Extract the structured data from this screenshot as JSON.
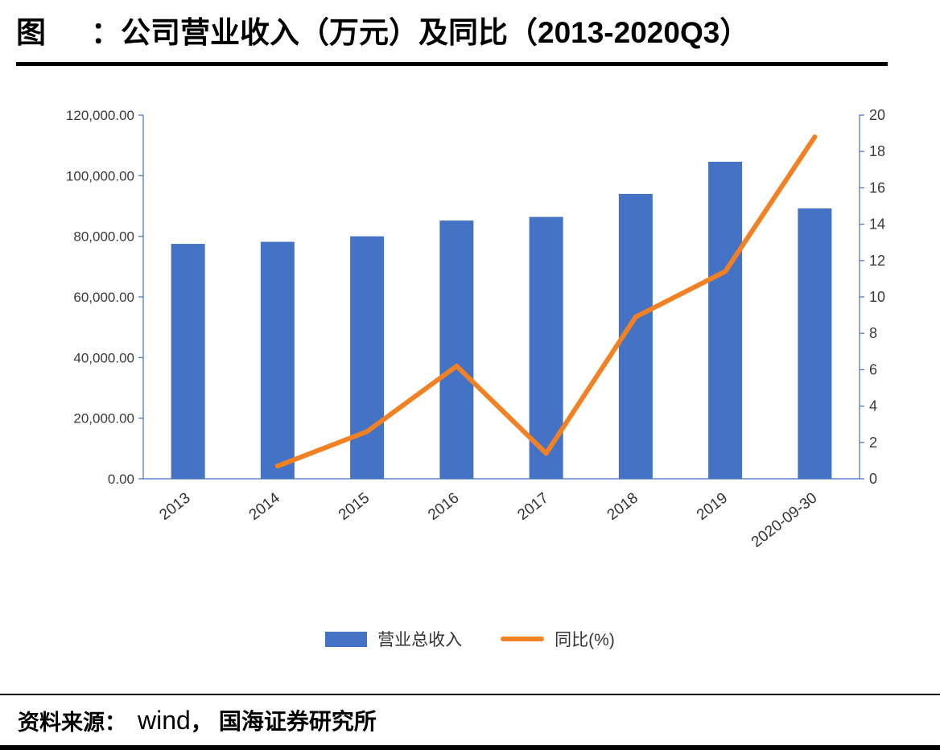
{
  "header": {
    "figure_label": "图",
    "separator": "：",
    "title": "公司营业收入（万元）及同比（2013-2020Q3）"
  },
  "chart_data": {
    "type": "bar+line",
    "title": "公司营业收入（万元）及同比（2013-2020Q3）",
    "categories": [
      "2013",
      "2014",
      "2015",
      "2016",
      "2017",
      "2018",
      "2019",
      "2020-09-30"
    ],
    "series": [
      {
        "name": "营业总收入",
        "type": "bar",
        "axis": "left",
        "color": "#4472C4",
        "values": [
          77500,
          78200,
          80000,
          85200,
          86400,
          94000,
          104600,
          89200
        ]
      },
      {
        "name": "同比(%)",
        "type": "line",
        "axis": "right",
        "color": "#F28124",
        "values": [
          null,
          0.7,
          2.6,
          6.2,
          1.4,
          8.9,
          11.4,
          18.8
        ]
      }
    ],
    "left_axis": {
      "min": 0,
      "max": 120000,
      "step": 20000,
      "tick_labels": [
        "0.00",
        "20,000.00",
        "40,000.00",
        "60,000.00",
        "80,000.00",
        "100,000.00",
        "120,000.00"
      ]
    },
    "right_axis": {
      "min": 0,
      "max": 20,
      "step": 2,
      "tick_labels": [
        "0",
        "2",
        "4",
        "6",
        "8",
        "10",
        "12",
        "14",
        "16",
        "18",
        "20"
      ]
    },
    "grid": false,
    "legend_position": "bottom",
    "axis_color": "#4472C4",
    "tick_label_color": "#3a3a3a"
  },
  "footer": {
    "label": "资料来源：",
    "source": "wind",
    "separator": "，",
    "institution": "国海证券研究所"
  }
}
